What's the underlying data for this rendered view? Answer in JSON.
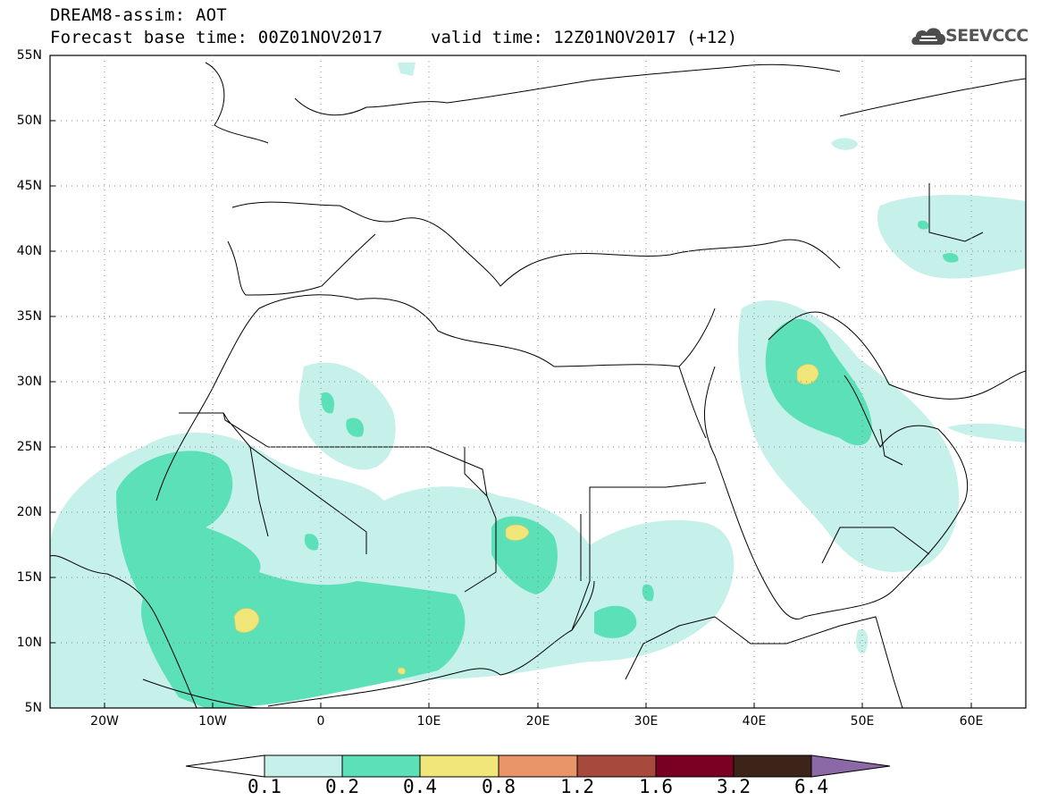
{
  "title": {
    "line1": "DREAM8-assim: AOT",
    "line2": "Forecast base time: 00Z01NOV2017",
    "valid": "valid time: 12Z01NOV2017 (+12)"
  },
  "logo": {
    "text": "SEEVCCC",
    "icon": "cloud-icon"
  },
  "map": {
    "lat_labels": [
      "55N",
      "50N",
      "45N",
      "40N",
      "35N",
      "30N",
      "25N",
      "20N",
      "15N",
      "10N",
      "5N"
    ],
    "lon_labels": [
      "20W",
      "10W",
      "0",
      "10E",
      "20E",
      "30E",
      "40E",
      "50E",
      "60E"
    ],
    "lat_range": [
      5,
      55
    ],
    "lon_range": [
      -25,
      65
    ],
    "grid": "dotted"
  },
  "colorbar": {
    "levels": [
      "0.1",
      "0.2",
      "0.4",
      "0.8",
      "1.2",
      "1.6",
      "3.2",
      "6.4"
    ],
    "colors": [
      "#c6f0ea",
      "#5ce0b8",
      "#f1e67a",
      "#ea946a",
      "#a8493d",
      "#790022",
      "#3d2419",
      "#8b68a6"
    ]
  }
}
